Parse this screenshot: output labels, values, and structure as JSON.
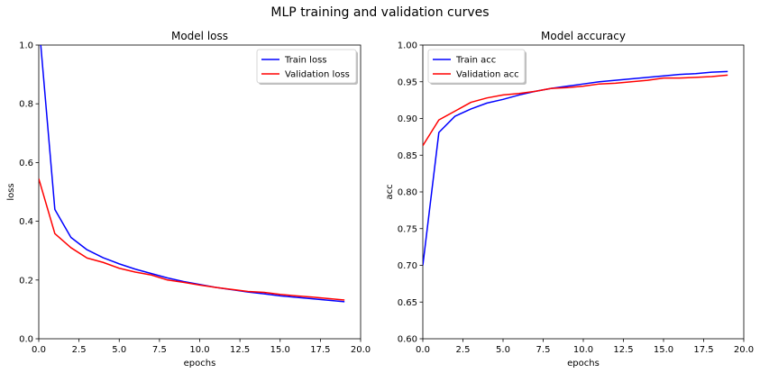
{
  "figure": {
    "suptitle": "MLP training and validation curves"
  },
  "chart_data": [
    {
      "type": "line",
      "title": "Model loss",
      "xlabel": "epochs",
      "ylabel": "loss",
      "xlim": [
        0,
        20
      ],
      "ylim": [
        0,
        1
      ],
      "xticks": [
        0,
        2.5,
        5,
        7.5,
        10,
        12.5,
        15,
        17.5,
        20
      ],
      "xtick_labels": [
        "0.0",
        "2.5",
        "5.0",
        "7.5",
        "10.0",
        "12.5",
        "15.0",
        "17.5",
        "20.0"
      ],
      "yticks": [
        0,
        0.2,
        0.4,
        0.6,
        0.8,
        1.0
      ],
      "ytick_labels": [
        "0.0",
        "0.2",
        "0.4",
        "0.6",
        "0.8",
        "1.0"
      ],
      "grid": false,
      "legend_position": "top-right",
      "x": [
        0,
        1,
        2,
        3,
        4,
        5,
        6,
        7,
        8,
        9,
        10,
        11,
        12,
        13,
        14,
        15,
        16,
        17,
        18,
        19
      ],
      "series": [
        {
          "name": "Train loss",
          "color": "#0000ff",
          "values": [
            1.08,
            0.44,
            0.345,
            0.303,
            0.276,
            0.255,
            0.237,
            0.222,
            0.207,
            0.195,
            0.185,
            0.175,
            0.167,
            0.159,
            0.153,
            0.146,
            0.141,
            0.136,
            0.131,
            0.126
          ]
        },
        {
          "name": "Validation loss",
          "color": "#ff0000",
          "values": [
            0.545,
            0.358,
            0.31,
            0.275,
            0.26,
            0.24,
            0.227,
            0.217,
            0.2,
            0.192,
            0.183,
            0.175,
            0.168,
            0.161,
            0.158,
            0.151,
            0.146,
            0.142,
            0.137,
            0.132
          ]
        }
      ]
    },
    {
      "type": "line",
      "title": "Model accuracy",
      "xlabel": "epochs",
      "ylabel": "acc",
      "xlim": [
        0,
        20
      ],
      "ylim": [
        0.6,
        1.0
      ],
      "xticks": [
        0,
        2.5,
        5,
        7.5,
        10,
        12.5,
        15,
        17.5,
        20
      ],
      "xtick_labels": [
        "0.0",
        "2.5",
        "5.0",
        "7.5",
        "10.0",
        "12.5",
        "15.0",
        "17.5",
        "20.0"
      ],
      "yticks": [
        0.6,
        0.65,
        0.7,
        0.75,
        0.8,
        0.85,
        0.9,
        0.95,
        1.0
      ],
      "ytick_labels": [
        "0.60",
        "0.65",
        "0.70",
        "0.75",
        "0.80",
        "0.85",
        "0.90",
        "0.95",
        "1.00"
      ],
      "grid": false,
      "legend_position": "top-left",
      "x": [
        0,
        1,
        2,
        3,
        4,
        5,
        6,
        7,
        8,
        9,
        10,
        11,
        12,
        13,
        14,
        15,
        16,
        17,
        18,
        19
      ],
      "series": [
        {
          "name": "Train acc",
          "color": "#0000ff",
          "values": [
            0.7,
            0.881,
            0.903,
            0.913,
            0.921,
            0.926,
            0.932,
            0.937,
            0.941,
            0.944,
            0.947,
            0.95,
            0.952,
            0.954,
            0.956,
            0.958,
            0.96,
            0.961,
            0.963,
            0.964
          ]
        },
        {
          "name": "Validation acc",
          "color": "#ff0000",
          "values": [
            0.863,
            0.898,
            0.91,
            0.922,
            0.928,
            0.932,
            0.934,
            0.937,
            0.941,
            0.942,
            0.944,
            0.947,
            0.948,
            0.95,
            0.952,
            0.955,
            0.955,
            0.956,
            0.957,
            0.959
          ]
        }
      ]
    }
  ]
}
